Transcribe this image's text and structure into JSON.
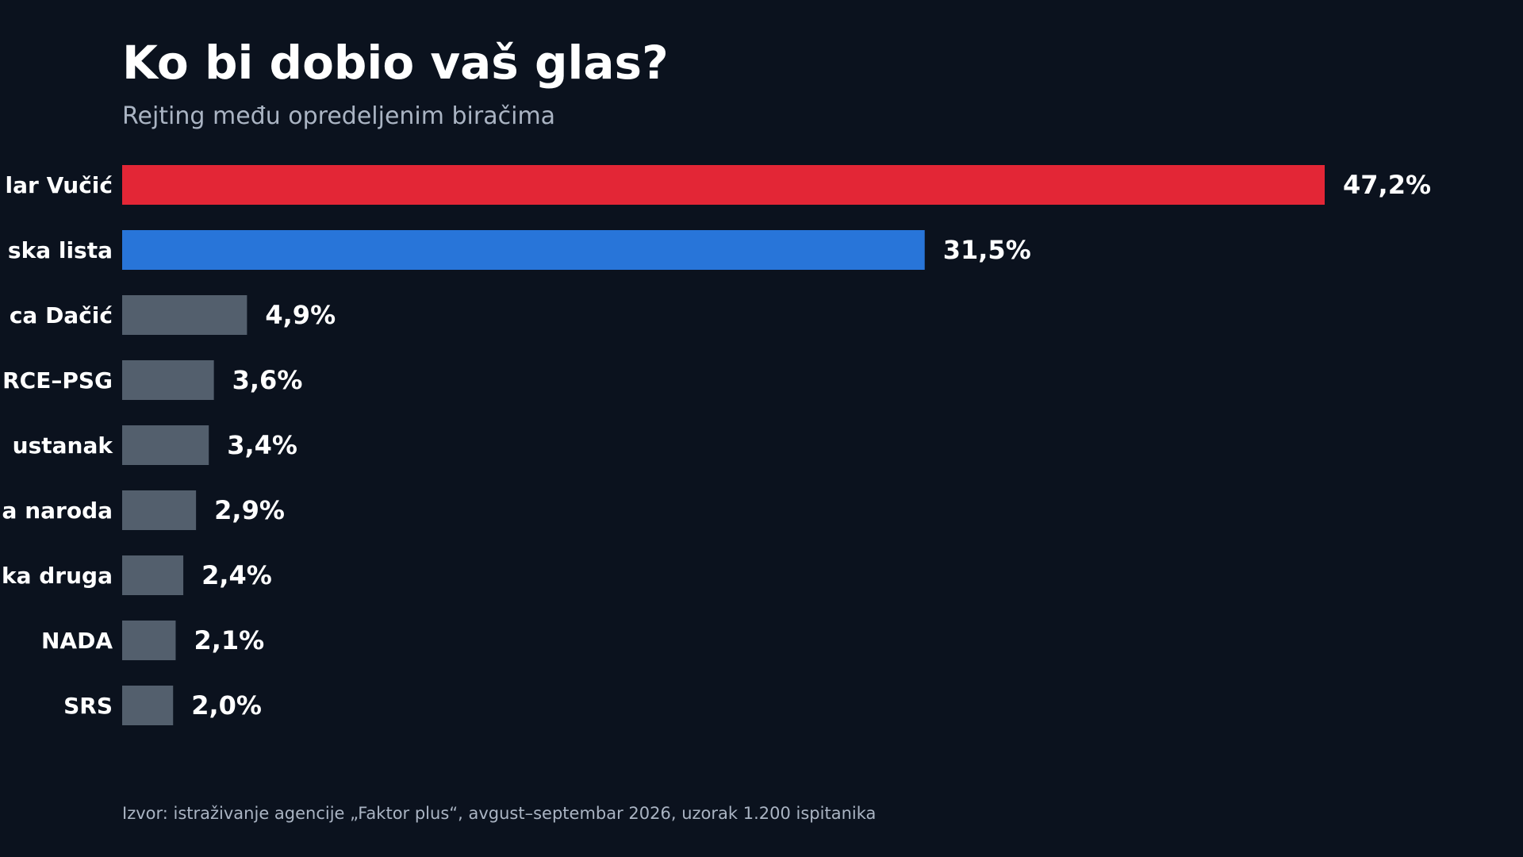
{
  "header": {
    "title": "Ko bi dobio vaš glas?",
    "subtitle": "Rejting među opredeljenim biračima"
  },
  "footer": {
    "source": "Izvor: istraživanje agencije „Faktor plus“, avgust–septembar 2026, uzorak 1.200 ispitanika"
  },
  "chart_data": {
    "type": "bar",
    "orientation": "horizontal",
    "title": "Ko bi dobio vaš glas?",
    "subtitle": "Rejting među opredeljenim biračima",
    "categories": [
      "lar Vučić",
      "ska lista",
      "ca Dačić",
      "RCE–PSG",
      " ustanak",
      "a naroda",
      "ka druga",
      "NADA",
      "SRS"
    ],
    "values": [
      47.2,
      31.5,
      4.9,
      3.6,
      3.4,
      2.9,
      2.4,
      2.1,
      2.0
    ],
    "value_labels": [
      "47,2%",
      "31,5%",
      "4,9%",
      "3,6%",
      "3,4%",
      "2,9%",
      "2,4%",
      "2,1%",
      "2,0%"
    ],
    "unit": "%",
    "xlim": [
      0,
      47.2
    ],
    "grid": false,
    "legend": "none",
    "colors": [
      "#e32636",
      "#2875d9",
      "#535f6d",
      "#535f6d",
      "#535f6d",
      "#535f6d",
      "#535f6d",
      "#535f6d",
      "#535f6d"
    ]
  },
  "theme": {
    "background": "#0b121e",
    "text": "#ffffff",
    "muted_text": "#aab4c3"
  }
}
